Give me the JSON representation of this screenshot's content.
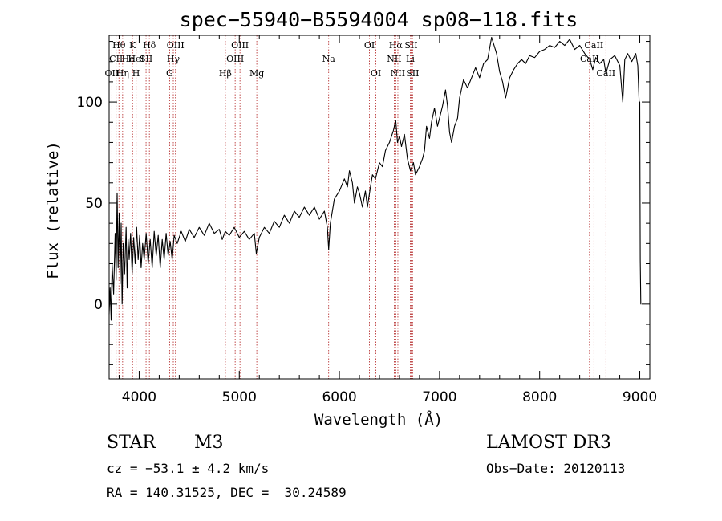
{
  "chart_data": {
    "type": "line",
    "title": "spec−55940−B5594004_sp08−118.fits",
    "xlabel": "Wavelength (Å)",
    "ylabel": "Flux (relative)",
    "xlim": [
      3700,
      9100
    ],
    "ylim": [
      -37,
      133
    ],
    "xticks": [
      4000,
      5000,
      6000,
      7000,
      8000,
      9000
    ],
    "yticks": [
      0,
      50,
      100
    ],
    "x_minor_step": 200,
    "y_minor_step": 10,
    "series": [
      {
        "name": "flux",
        "points": [
          [
            3700,
            -5
          ],
          [
            3710,
            8
          ],
          [
            3720,
            -8
          ],
          [
            3730,
            20
          ],
          [
            3745,
            5
          ],
          [
            3760,
            35
          ],
          [
            3770,
            12
          ],
          [
            3780,
            55
          ],
          [
            3790,
            18
          ],
          [
            3800,
            45
          ],
          [
            3810,
            10
          ],
          [
            3820,
            40
          ],
          [
            3830,
            0
          ],
          [
            3840,
            30
          ],
          [
            3855,
            15
          ],
          [
            3870,
            38
          ],
          [
            3880,
            8
          ],
          [
            3890,
            32
          ],
          [
            3900,
            22
          ],
          [
            3915,
            35
          ],
          [
            3930,
            15
          ],
          [
            3945,
            33
          ],
          [
            3960,
            20
          ],
          [
            3975,
            38
          ],
          [
            3990,
            22
          ],
          [
            4005,
            34
          ],
          [
            4020,
            18
          ],
          [
            4035,
            30
          ],
          [
            4050,
            22
          ],
          [
            4070,
            35
          ],
          [
            4090,
            20
          ],
          [
            4110,
            32
          ],
          [
            4130,
            18
          ],
          [
            4150,
            36
          ],
          [
            4170,
            24
          ],
          [
            4190,
            34
          ],
          [
            4210,
            18
          ],
          [
            4230,
            32
          ],
          [
            4250,
            22
          ],
          [
            4270,
            35
          ],
          [
            4290,
            24
          ],
          [
            4310,
            31
          ],
          [
            4330,
            22
          ],
          [
            4350,
            34
          ],
          [
            4380,
            30
          ],
          [
            4420,
            36
          ],
          [
            4460,
            31
          ],
          [
            4500,
            37
          ],
          [
            4550,
            33
          ],
          [
            4600,
            38
          ],
          [
            4650,
            34
          ],
          [
            4700,
            40
          ],
          [
            4750,
            35
          ],
          [
            4800,
            37
          ],
          [
            4830,
            32
          ],
          [
            4860,
            36
          ],
          [
            4900,
            34
          ],
          [
            4950,
            38
          ],
          [
            5000,
            33
          ],
          [
            5050,
            36
          ],
          [
            5100,
            32
          ],
          [
            5150,
            35
          ],
          [
            5170,
            25
          ],
          [
            5200,
            33
          ],
          [
            5250,
            38
          ],
          [
            5300,
            35
          ],
          [
            5350,
            41
          ],
          [
            5400,
            38
          ],
          [
            5450,
            44
          ],
          [
            5500,
            40
          ],
          [
            5550,
            46
          ],
          [
            5600,
            43
          ],
          [
            5650,
            48
          ],
          [
            5700,
            44
          ],
          [
            5750,
            48
          ],
          [
            5800,
            42
          ],
          [
            5850,
            46
          ],
          [
            5880,
            38
          ],
          [
            5893,
            27
          ],
          [
            5910,
            40
          ],
          [
            5950,
            52
          ],
          [
            6000,
            56
          ],
          [
            6050,
            62
          ],
          [
            6080,
            58
          ],
          [
            6100,
            66
          ],
          [
            6130,
            60
          ],
          [
            6150,
            50
          ],
          [
            6180,
            58
          ],
          [
            6200,
            55
          ],
          [
            6230,
            48
          ],
          [
            6260,
            56
          ],
          [
            6280,
            48
          ],
          [
            6310,
            58
          ],
          [
            6330,
            64
          ],
          [
            6360,
            62
          ],
          [
            6400,
            70
          ],
          [
            6430,
            68
          ],
          [
            6460,
            76
          ],
          [
            6500,
            80
          ],
          [
            6540,
            86
          ],
          [
            6563,
            91
          ],
          [
            6580,
            80
          ],
          [
            6600,
            83
          ],
          [
            6620,
            78
          ],
          [
            6650,
            84
          ],
          [
            6680,
            72
          ],
          [
            6710,
            66
          ],
          [
            6740,
            70
          ],
          [
            6760,
            64
          ],
          [
            6800,
            68
          ],
          [
            6830,
            72
          ],
          [
            6850,
            76
          ],
          [
            6870,
            88
          ],
          [
            6900,
            82
          ],
          [
            6920,
            90
          ],
          [
            6950,
            97
          ],
          [
            6980,
            88
          ],
          [
            7000,
            92
          ],
          [
            7030,
            98
          ],
          [
            7060,
            106
          ],
          [
            7080,
            98
          ],
          [
            7100,
            85
          ],
          [
            7120,
            80
          ],
          [
            7150,
            88
          ],
          [
            7180,
            92
          ],
          [
            7200,
            102
          ],
          [
            7240,
            111
          ],
          [
            7280,
            107
          ],
          [
            7320,
            112
          ],
          [
            7360,
            117
          ],
          [
            7400,
            112
          ],
          [
            7440,
            119
          ],
          [
            7480,
            121
          ],
          [
            7520,
            132
          ],
          [
            7545,
            128
          ],
          [
            7570,
            124
          ],
          [
            7600,
            115
          ],
          [
            7630,
            110
          ],
          [
            7660,
            102
          ],
          [
            7700,
            112
          ],
          [
            7740,
            116
          ],
          [
            7780,
            119
          ],
          [
            7820,
            121
          ],
          [
            7860,
            119
          ],
          [
            7900,
            123
          ],
          [
            7950,
            122
          ],
          [
            8000,
            125
          ],
          [
            8050,
            126
          ],
          [
            8100,
            128
          ],
          [
            8150,
            127
          ],
          [
            8200,
            130
          ],
          [
            8250,
            128
          ],
          [
            8300,
            131
          ],
          [
            8350,
            126
          ],
          [
            8400,
            128
          ],
          [
            8450,
            124
          ],
          [
            8500,
            121
          ],
          [
            8530,
            116
          ],
          [
            8560,
            122
          ],
          [
            8600,
            119
          ],
          [
            8640,
            121
          ],
          [
            8662,
            114
          ],
          [
            8700,
            121
          ],
          [
            8750,
            123
          ],
          [
            8800,
            118
          ],
          [
            8830,
            100
          ],
          [
            8850,
            121
          ],
          [
            8880,
            124
          ],
          [
            8920,
            120
          ],
          [
            8960,
            124
          ],
          [
            8980,
            118
          ],
          [
            8995,
            98
          ],
          [
            9000,
            100
          ],
          [
            9005,
            22
          ],
          [
            9010,
            0
          ],
          [
            9015,
            0
          ]
        ]
      }
    ],
    "spectral_lines": [
      {
        "label": "Hθ",
        "x": 3798,
        "row": 0
      },
      {
        "label": "CII",
        "x": 3770,
        "row": 1
      },
      {
        "label": "OII",
        "x": 3727,
        "row": 2
      },
      {
        "label": "He",
        "x": 3889,
        "row": 1
      },
      {
        "label": "Hη",
        "x": 3835,
        "row": 2
      },
      {
        "label": "K",
        "x": 3934,
        "row": 0
      },
      {
        "label": "HeI",
        "x": 3970,
        "row": 1
      },
      {
        "label": "H",
        "x": 3969,
        "row": 2
      },
      {
        "label": "SII",
        "x": 4069,
        "row": 1
      },
      {
        "label": "Hδ",
        "x": 4102,
        "row": 0
      },
      {
        "label": "OIII",
        "x": 4363,
        "row": 0
      },
      {
        "label": "Hγ",
        "x": 4341,
        "row": 1
      },
      {
        "label": "G",
        "x": 4304,
        "row": 2
      },
      {
        "label": "Hβ",
        "x": 4861,
        "row": 2
      },
      {
        "label": "OIII",
        "x": 5007,
        "row": 0
      },
      {
        "label": "OIII",
        "x": 4959,
        "row": 1
      },
      {
        "label": "Mg",
        "x": 5175,
        "row": 2
      },
      {
        "label": "Na",
        "x": 5893,
        "row": 1
      },
      {
        "label": "OI",
        "x": 6300,
        "row": 0
      },
      {
        "label": "OI",
        "x": 6364,
        "row": 2
      },
      {
        "label": "Hα",
        "x": 6563,
        "row": 0
      },
      {
        "label": "NII",
        "x": 6548,
        "row": 1
      },
      {
        "label": "NII",
        "x": 6584,
        "row": 2
      },
      {
        "label": "SII",
        "x": 6716,
        "row": 0
      },
      {
        "label": "Li",
        "x": 6708,
        "row": 1
      },
      {
        "label": "SII",
        "x": 6731,
        "row": 2
      },
      {
        "label": "CaII",
        "x": 8542,
        "row": 0
      },
      {
        "label": "CaII",
        "x": 8498,
        "row": 1
      },
      {
        "label": "CaII",
        "x": 8662,
        "row": 2
      }
    ]
  },
  "info": {
    "class": "STAR",
    "subclass": "M3",
    "survey": "LAMOST DR3",
    "cz": "cz = −53.1 ± 4.2 km/s",
    "obs_date": "Obs−Date: 20120113",
    "coords": "RA = 140.31525, DEC =  30.24589"
  }
}
